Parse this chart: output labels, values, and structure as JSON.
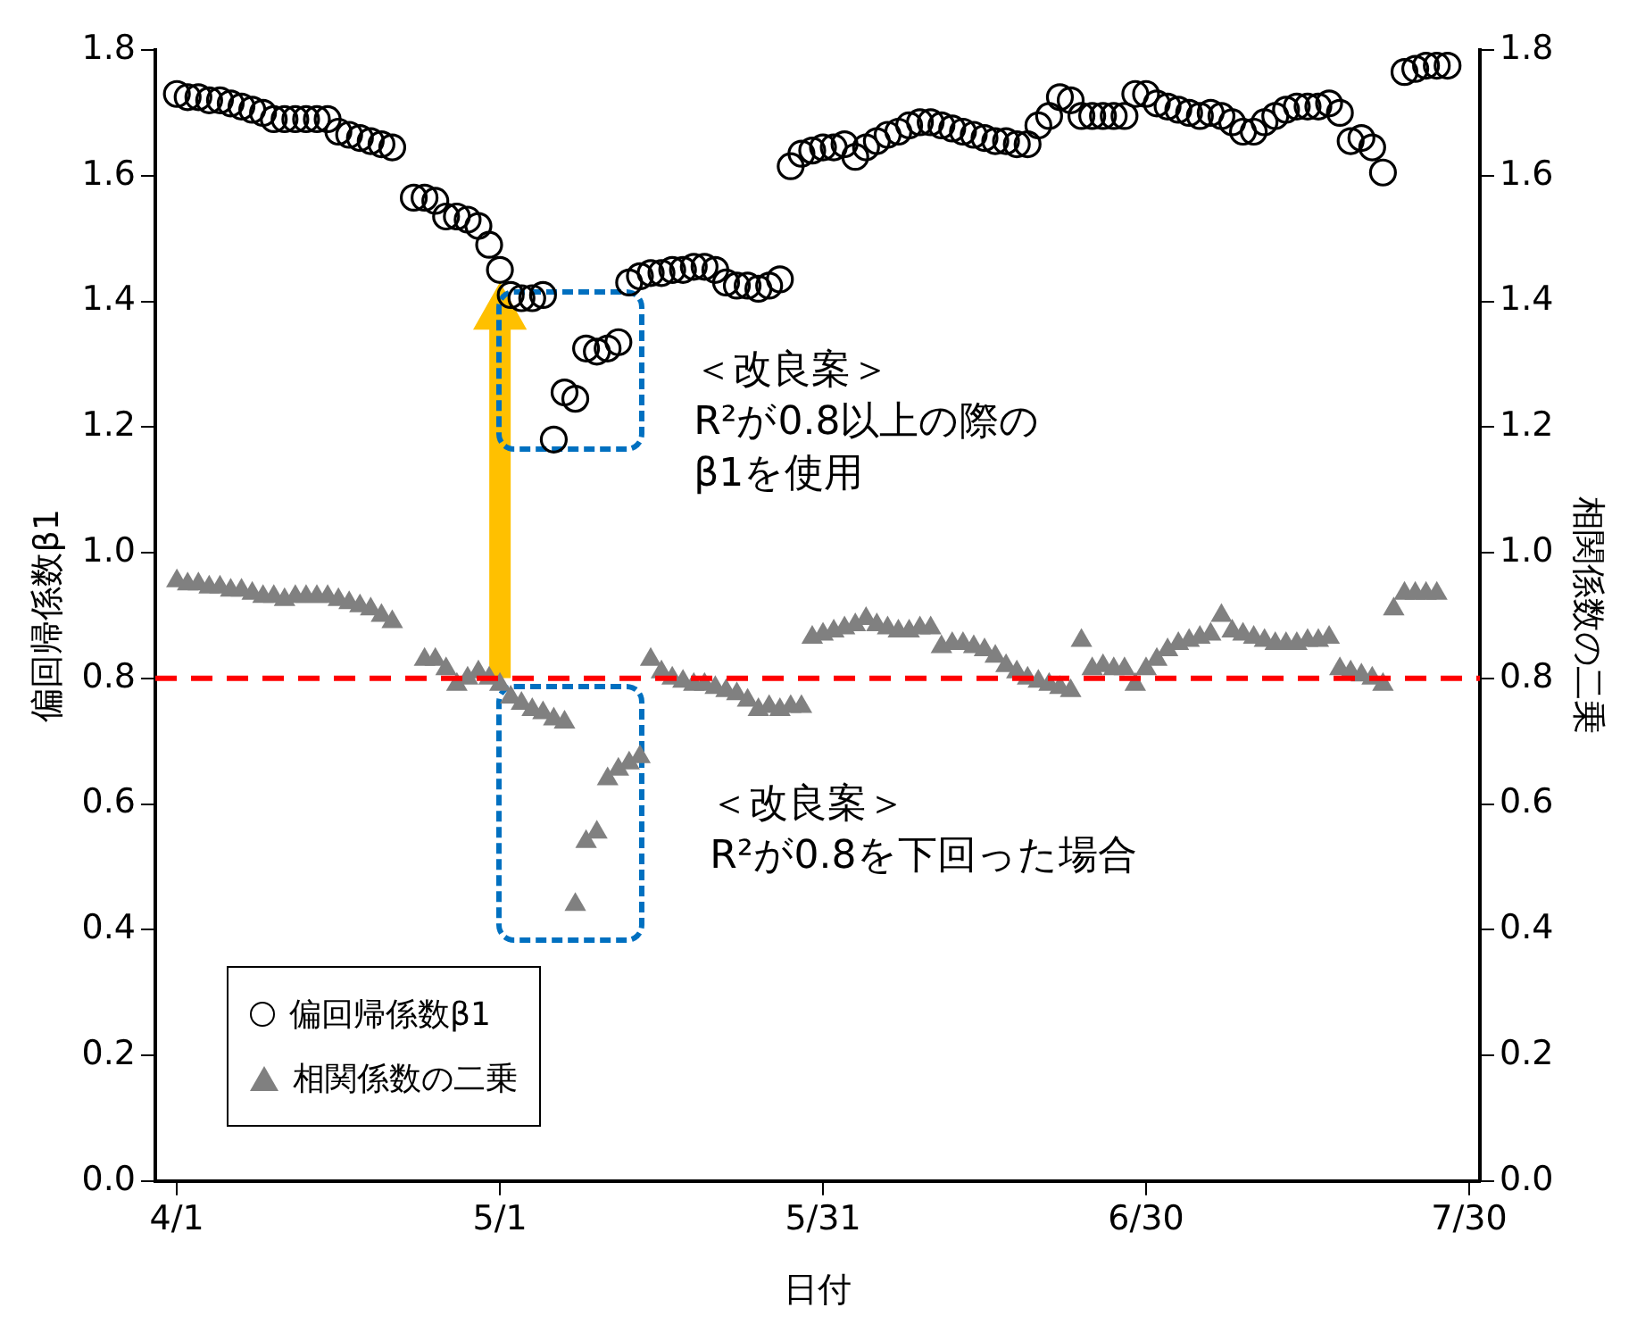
{
  "chart_data": {
    "type": "scatter",
    "xlabel": "日付",
    "ylabel": "偏回帰係数β1",
    "y2label": "相関係数の二乗",
    "x": [
      "--04-01",
      "--04-02",
      "--04-03",
      "--04-04",
      "--04-05",
      "--04-06",
      "--04-07",
      "--04-08",
      "--04-09",
      "--04-10",
      "--04-11",
      "--04-12",
      "--04-13",
      "--04-14",
      "--04-15",
      "--04-16",
      "--04-17",
      "--04-18",
      "--04-19",
      "--04-20",
      "--04-21",
      "--04-22",
      "--04-23",
      "--04-24",
      "--04-25",
      "--04-26",
      "--04-27",
      "--04-28",
      "--04-29",
      "--04-30",
      "--05-01",
      "--05-02",
      "--05-03",
      "--05-04",
      "--05-05",
      "--05-06",
      "--05-07",
      "--05-08",
      "--05-09",
      "--05-10",
      "--05-11",
      "--05-12",
      "--05-13",
      "--05-14",
      "--05-15",
      "--05-16",
      "--05-17",
      "--05-18",
      "--05-19",
      "--05-20",
      "--05-21",
      "--05-22",
      "--05-23",
      "--05-24",
      "--05-25",
      "--05-26",
      "--05-27",
      "--05-28",
      "--05-29",
      "--05-30",
      "--05-31",
      "--06-01",
      "--06-02",
      "--06-03",
      "--06-04",
      "--06-05",
      "--06-06",
      "--06-07",
      "--06-08",
      "--06-09",
      "--06-10",
      "--06-11",
      "--06-12",
      "--06-13",
      "--06-14",
      "--06-15",
      "--06-16",
      "--06-17",
      "--06-18",
      "--06-19",
      "--06-20",
      "--06-21",
      "--06-22",
      "--06-23",
      "--06-24",
      "--06-25",
      "--06-26",
      "--06-27",
      "--06-28",
      "--06-29",
      "--06-30",
      "--07-01",
      "--07-02",
      "--07-03",
      "--07-04",
      "--07-05",
      "--07-06",
      "--07-07",
      "--07-08",
      "--07-09",
      "--07-10",
      "--07-11",
      "--07-12",
      "--07-13",
      "--07-14",
      "--07-15",
      "--07-16",
      "--07-17",
      "--07-18",
      "--07-19",
      "--07-20",
      "--07-21",
      "--07-22",
      "--07-23",
      "--07-24",
      "--07-25",
      "--07-26",
      "--07-27",
      "--07-28"
    ],
    "series": [
      {
        "name": "偏回帰係数β1",
        "color": "#000000",
        "marker": "circle",
        "values": [
          1.73,
          1.725,
          1.725,
          1.72,
          1.72,
          1.715,
          1.71,
          1.705,
          1.7,
          1.69,
          1.69,
          1.69,
          1.69,
          1.69,
          1.69,
          1.67,
          1.665,
          1.66,
          1.655,
          1.65,
          1.645,
          null,
          1.565,
          1.565,
          1.56,
          1.535,
          1.535,
          1.53,
          1.52,
          1.49,
          1.45,
          1.41,
          1.405,
          1.405,
          1.41,
          1.18,
          1.255,
          1.245,
          1.325,
          1.32,
          1.325,
          1.335,
          1.43,
          1.44,
          1.445,
          1.445,
          1.45,
          1.45,
          1.455,
          1.455,
          1.45,
          1.43,
          1.425,
          1.425,
          1.42,
          1.425,
          1.435,
          1.615,
          1.635,
          1.64,
          1.645,
          1.645,
          1.65,
          1.63,
          1.645,
          1.655,
          1.665,
          1.67,
          1.68,
          1.685,
          1.685,
          1.68,
          1.675,
          1.67,
          1.665,
          1.66,
          1.655,
          1.655,
          1.65,
          1.65,
          1.68,
          1.695,
          1.725,
          1.72,
          1.695,
          1.695,
          1.695,
          1.695,
          1.695,
          1.73,
          1.73,
          1.715,
          1.71,
          1.705,
          1.7,
          1.695,
          1.7,
          1.695,
          1.685,
          1.67,
          1.67,
          1.685,
          1.695,
          1.705,
          1.71,
          1.71,
          1.71,
          1.715,
          1.7,
          1.655,
          1.66,
          1.645,
          1.605,
          null,
          1.765,
          1.77,
          1.775,
          1.775,
          1.775
        ]
      },
      {
        "name": "相関係数の二乗",
        "color": "#808080",
        "marker": "triangle",
        "axis": "y2",
        "values": [
          0.955,
          0.95,
          0.95,
          0.945,
          0.945,
          0.94,
          0.94,
          0.935,
          0.93,
          0.93,
          0.925,
          0.93,
          0.93,
          0.93,
          0.93,
          0.925,
          0.92,
          0.915,
          0.91,
          0.9,
          0.89,
          null,
          null,
          0.83,
          0.83,
          0.815,
          0.79,
          0.8,
          0.81,
          0.8,
          0.79,
          0.77,
          0.76,
          0.75,
          0.745,
          0.735,
          0.73,
          0.44,
          0.54,
          0.555,
          0.64,
          0.655,
          0.665,
          0.675,
          0.83,
          0.81,
          0.8,
          0.795,
          0.79,
          0.79,
          0.785,
          0.78,
          0.775,
          0.765,
          0.75,
          0.755,
          0.75,
          0.755,
          0.755,
          0.865,
          0.87,
          0.875,
          0.88,
          0.885,
          0.895,
          0.885,
          0.88,
          0.875,
          0.875,
          0.88,
          0.88,
          0.85,
          0.855,
          0.855,
          0.85,
          0.845,
          0.835,
          0.82,
          0.81,
          0.8,
          0.795,
          0.79,
          0.785,
          0.78,
          0.86,
          0.815,
          0.82,
          0.815,
          0.815,
          0.79,
          0.815,
          0.83,
          0.845,
          0.855,
          0.86,
          0.865,
          0.87,
          0.9,
          0.875,
          0.87,
          0.865,
          0.86,
          0.855,
          0.855,
          0.855,
          0.86,
          0.86,
          0.865,
          0.815,
          0.81,
          0.805,
          0.8,
          0.79,
          0.91,
          0.935,
          0.935,
          0.935,
          0.935,
          null
        ]
      }
    ],
    "xlim": [
      "--03-30",
      "--07-31"
    ],
    "xticks": [
      {
        "value": "--04-01",
        "label": "4/1"
      },
      {
        "value": "--05-01",
        "label": "5/1"
      },
      {
        "value": "--05-31",
        "label": "5/31"
      },
      {
        "value": "--06-30",
        "label": "6/30"
      },
      {
        "value": "--07-30",
        "label": "7/30"
      }
    ],
    "ylim": [
      0,
      1.8
    ],
    "yticks": [
      {
        "value": 0,
        "label": "0.0"
      },
      {
        "value": 0.2,
        "label": "0.2"
      },
      {
        "value": 0.4,
        "label": "0.4"
      },
      {
        "value": 0.6,
        "label": "0.6"
      },
      {
        "value": 0.8,
        "label": "0.8"
      },
      {
        "value": 1,
        "label": "1.0"
      },
      {
        "value": 1.2,
        "label": "1.2"
      },
      {
        "value": 1.4,
        "label": "1.4"
      },
      {
        "value": 1.6,
        "label": "1.6"
      },
      {
        "value": 1.8,
        "label": "1.8"
      }
    ],
    "y2lim": [
      0,
      1.8
    ],
    "y2ticks": [
      {
        "value": 0,
        "label": "0.0"
      },
      {
        "value": 0.2,
        "label": "0.2"
      },
      {
        "value": 0.4,
        "label": "0.4"
      },
      {
        "value": 0.6,
        "label": "0.6"
      },
      {
        "value": 0.8,
        "label": "0.8"
      },
      {
        "value": 1,
        "label": "1.0"
      },
      {
        "value": 1.2,
        "label": "1.2"
      },
      {
        "value": 1.4,
        "label": "1.4"
      },
      {
        "value": 1.6,
        "label": "1.6"
      },
      {
        "value": 1.8,
        "label": "1.8"
      }
    ],
    "ref_lines": [
      {
        "axis": "y",
        "value": 0.8,
        "color": "#ff0000",
        "line_style": "dashed"
      }
    ],
    "annotations": [
      "＜改良案＞\nR²が0.8以上の際の\nβ1を使用",
      "＜改良案＞\nR²が0.8を下回った場合"
    ],
    "legend": "bottom left",
    "grid": false
  }
}
